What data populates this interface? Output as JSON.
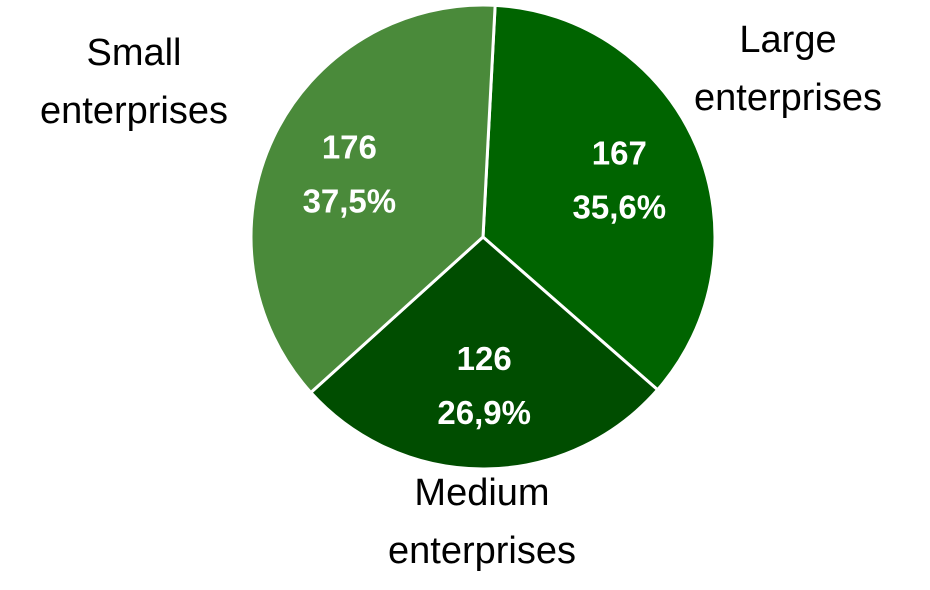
{
  "chart_data": {
    "type": "pie",
    "slices": [
      {
        "label_lines": [
          "Large",
          "enterprises"
        ],
        "value": 167,
        "percent_label": "35,6%",
        "color": "#006400"
      },
      {
        "label_lines": [
          "Medium",
          "enterprises"
        ],
        "value": 126,
        "percent_label": "26,9%",
        "color": "#004d00"
      },
      {
        "label_lines": [
          "Small",
          "enterprises"
        ],
        "value": 176,
        "percent_label": "37,5%",
        "color": "#4a8a3a"
      }
    ],
    "start_angle_deg": 3,
    "direction": "clockwise",
    "slice_border_color": "#ffffff"
  }
}
